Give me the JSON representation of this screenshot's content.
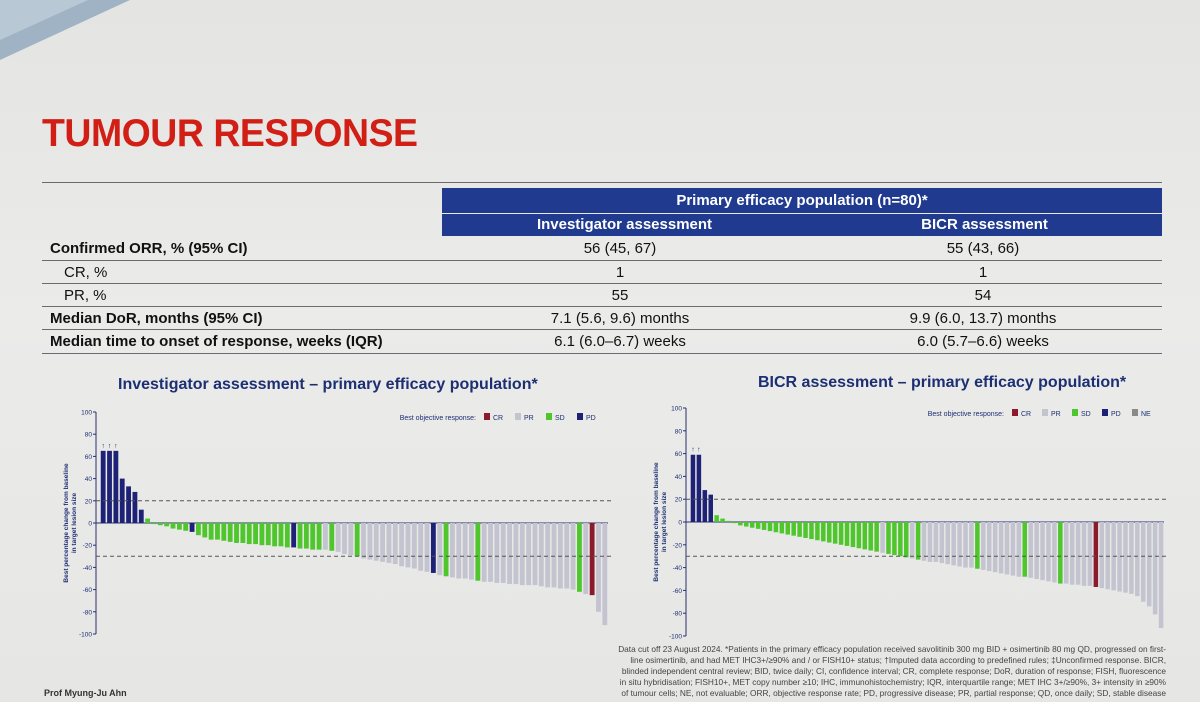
{
  "slide_title": "TUMOUR RESPONSE",
  "table": {
    "group_header": "Primary efficacy population (n=80)*",
    "col_headers": [
      "Investigator assessment",
      "BICR assessment"
    ],
    "rows": [
      {
        "label": "Confirmed ORR, % (95% CI)",
        "bold": true,
        "inv": "56 (45, 67)",
        "bicr": "55 (43, 66)"
      },
      {
        "label": "CR, %",
        "bold": false,
        "inv": "1",
        "bicr": "1"
      },
      {
        "label": "PR, %",
        "bold": false,
        "inv": "55",
        "bicr": "54"
      },
      {
        "label": "Median DoR, months (95% CI)",
        "bold": true,
        "inv": "7.1 (5.6, 9.6) months",
        "bicr": "9.9 (6.0, 13.7) months"
      },
      {
        "label": "Median time to onset of response, weeks (IQR)",
        "bold": true,
        "inv": "6.1 (6.0–6.7) weeks",
        "bicr": "6.0 (5.7–6.6) weeks"
      }
    ]
  },
  "colors": {
    "CR": "#8a1a2c",
    "PR": "#c3c4cf",
    "SD": "#4fc72c",
    "PD": "#1e2276",
    "NE": "#8a8a8a",
    "header": "#1f3a8e",
    "title": "#d21f15"
  },
  "chart_data": [
    {
      "type": "bar",
      "title": "Investigator assessment – primary efficacy population*",
      "legend_title": "Best objective response:",
      "legend": [
        "CR",
        "PR",
        "SD",
        "PD"
      ],
      "ylabel": "Best percentage change from baseline in target lesion size",
      "ylim": [
        -100,
        100
      ],
      "yticks": [
        100,
        80,
        60,
        40,
        20,
        0,
        -20,
        -40,
        -60,
        -80,
        -100
      ],
      "reference_lines": [
        20,
        -30
      ],
      "values": [
        65,
        65,
        65,
        40,
        33,
        28,
        12,
        4,
        -1,
        -2,
        -3,
        -5,
        -6,
        -7,
        -8,
        -11,
        -13,
        -15,
        -15,
        -16,
        -17,
        -18,
        -18,
        -19,
        -19,
        -20,
        -20,
        -21,
        -21,
        -22,
        -22,
        -23,
        -23,
        -24,
        -24,
        -24,
        -25,
        -26,
        -28,
        -29,
        -30,
        -32,
        -33,
        -34,
        -35,
        -36,
        -37,
        -39,
        -40,
        -41,
        -43,
        -44,
        -45,
        -47,
        -48,
        -49,
        -50,
        -50,
        -51,
        -52,
        -53,
        -53,
        -54,
        -54,
        -55,
        -55,
        -56,
        -56,
        -56,
        -57,
        -58,
        -58,
        -59,
        -59,
        -60,
        -62,
        -64,
        -65,
        -80,
        -92
      ],
      "responses": [
        "PD",
        "PD",
        "PD",
        "PD",
        "PD",
        "PD",
        "PD",
        "SD",
        "SD",
        "SD",
        "SD",
        "SD",
        "SD",
        "SD",
        "PD",
        "SD",
        "SD",
        "SD",
        "SD",
        "SD",
        "SD",
        "SD",
        "SD",
        "SD",
        "SD",
        "SD",
        "SD",
        "SD",
        "SD",
        "SD",
        "PD",
        "SD",
        "SD",
        "SD",
        "SD",
        "PR",
        "SD",
        "PR",
        "PR",
        "PR",
        "SD",
        "PR",
        "PR",
        "PR",
        "PR",
        "PR",
        "PR",
        "PR",
        "PR",
        "PR",
        "PR",
        "PR",
        "PD",
        "PR",
        "SD",
        "PR",
        "PR",
        "PR",
        "PR",
        "SD",
        "PR",
        "PR",
        "PR",
        "PR",
        "PR",
        "PR",
        "PR",
        "PR",
        "PR",
        "PR",
        "PR",
        "PR",
        "PR",
        "PR",
        "PR",
        "SD",
        "PR",
        "CR",
        "PR",
        "PR"
      ],
      "annotations": [
        "↑",
        "↑",
        "↑"
      ]
    },
    {
      "type": "bar",
      "title": "BICR assessment – primary efficacy population*",
      "legend_title": "Best objective response:",
      "legend": [
        "CR",
        "PR",
        "SD",
        "PD",
        "NE"
      ],
      "ylabel": "Best percentage change from baseline in target lesion size",
      "ylim": [
        -100,
        100
      ],
      "yticks": [
        100,
        80,
        60,
        40,
        20,
        0,
        -20,
        -40,
        -60,
        -80,
        -100
      ],
      "reference_lines": [
        20,
        -30
      ],
      "values": [
        59,
        59,
        28,
        24,
        6,
        3,
        1,
        -1,
        -3,
        -4,
        -5,
        -6,
        -7,
        -8,
        -9,
        -10,
        -11,
        -12,
        -13,
        -14,
        -15,
        -16,
        -17,
        -18,
        -19,
        -20,
        -21,
        -22,
        -23,
        -24,
        -25,
        -26,
        -27,
        -28,
        -29,
        -30,
        -31,
        -32,
        -33,
        -34,
        -35,
        -35,
        -36,
        -37,
        -38,
        -39,
        -40,
        -40,
        -41,
        -42,
        -43,
        -44,
        -45,
        -46,
        -47,
        -48,
        -48,
        -49,
        -50,
        -51,
        -52,
        -53,
        -54,
        -54,
        -55,
        -55,
        -56,
        -56,
        -57,
        -58,
        -59,
        -60,
        -61,
        -62,
        -63,
        -65,
        -70,
        -74,
        -81,
        -93
      ],
      "responses": [
        "PD",
        "PD",
        "PD",
        "PD",
        "SD",
        "SD",
        "SD",
        "SD",
        "SD",
        "SD",
        "SD",
        "SD",
        "SD",
        "SD",
        "SD",
        "SD",
        "SD",
        "SD",
        "SD",
        "SD",
        "SD",
        "SD",
        "SD",
        "SD",
        "SD",
        "SD",
        "SD",
        "SD",
        "SD",
        "SD",
        "SD",
        "SD",
        "PR",
        "SD",
        "SD",
        "SD",
        "SD",
        "PR",
        "SD",
        "PR",
        "PR",
        "PR",
        "PR",
        "PR",
        "PR",
        "PR",
        "PR",
        "PR",
        "SD",
        "PR",
        "PR",
        "PR",
        "PR",
        "PR",
        "PR",
        "PR",
        "SD",
        "PR",
        "PR",
        "PR",
        "PR",
        "PR",
        "SD",
        "PR",
        "PR",
        "PR",
        "PR",
        "PR",
        "CR",
        "PR",
        "PR",
        "PR",
        "PR",
        "PR",
        "PR",
        "PR",
        "PR",
        "PR",
        "PR",
        "PR"
      ],
      "annotations": [
        "↑",
        "↑"
      ]
    }
  ],
  "footnote": "Data cut off 23 August 2024. *Patients in the primary efficacy population received savolitinib 300 mg BID + osimertinib 80 mg QD, progressed on first-line osimertinib, and had MET IHC3+/≥90% and / or FISH10+ status; †Imputed data according to predefined rules; ‡Unconfirmed response. BICR, blinded independent central review; BID, twice daily; CI, confidence interval; CR, complete response; DoR, duration of response; FISH, fluorescence in situ hybridisation; FISH10+, MET copy number ≥10; IHC, immunohistochemistry; IQR, interquartile range; MET IHC 3+/≥90%, 3+ intensity in ≥90% of tumour cells; NE, not evaluable; ORR, objective response rate; PD, progressive disease; PR, partial response; QD, once daily; SD, stable disease",
  "presenter": "Prof Myung-Ju Ahn"
}
